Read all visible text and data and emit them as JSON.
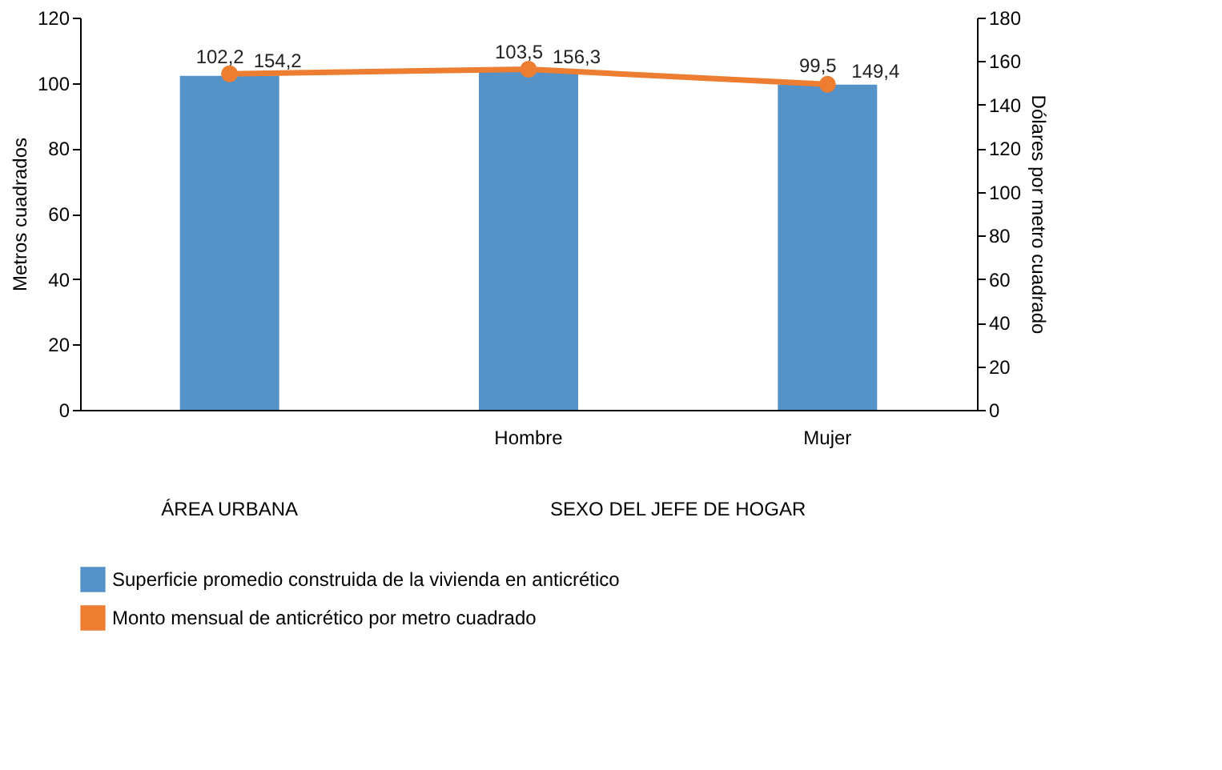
{
  "chart_data": {
    "type": "bar",
    "categories": [
      null,
      "Hombre",
      "Mujer"
    ],
    "ylabel": "Metros cuadrados",
    "y2label": "Dólares por metro cuadrado",
    "ylim": [
      0,
      120
    ],
    "yticks": [
      0,
      20,
      40,
      60,
      80,
      100,
      120
    ],
    "y2lim": [
      0,
      180
    ],
    "y2ticks": [
      0,
      20,
      40,
      60,
      80,
      100,
      120,
      140,
      160,
      180
    ],
    "series": [
      {
        "name": "Superficie promedio construida de la vivienda en anticrético",
        "color": "#5592c8",
        "values": [
          102.2,
          103.5,
          99.5
        ],
        "value_labels": [
          "102,2",
          "103,5",
          "99,5"
        ]
      },
      {
        "name": "Monto mensual de anticrético por metro cuadrado",
        "type": "line",
        "axis": "y2",
        "color": "#ed7d31",
        "marker": "circle",
        "values": [
          154.2,
          156.3,
          149.4
        ],
        "value_labels": [
          "154,2",
          "156,3",
          "149,4"
        ]
      }
    ],
    "annotations": [
      "ÁREA URBANA",
      "SEXO DEL JEFE DE HOGAR"
    ],
    "legend": "bottom",
    "grid": false
  }
}
